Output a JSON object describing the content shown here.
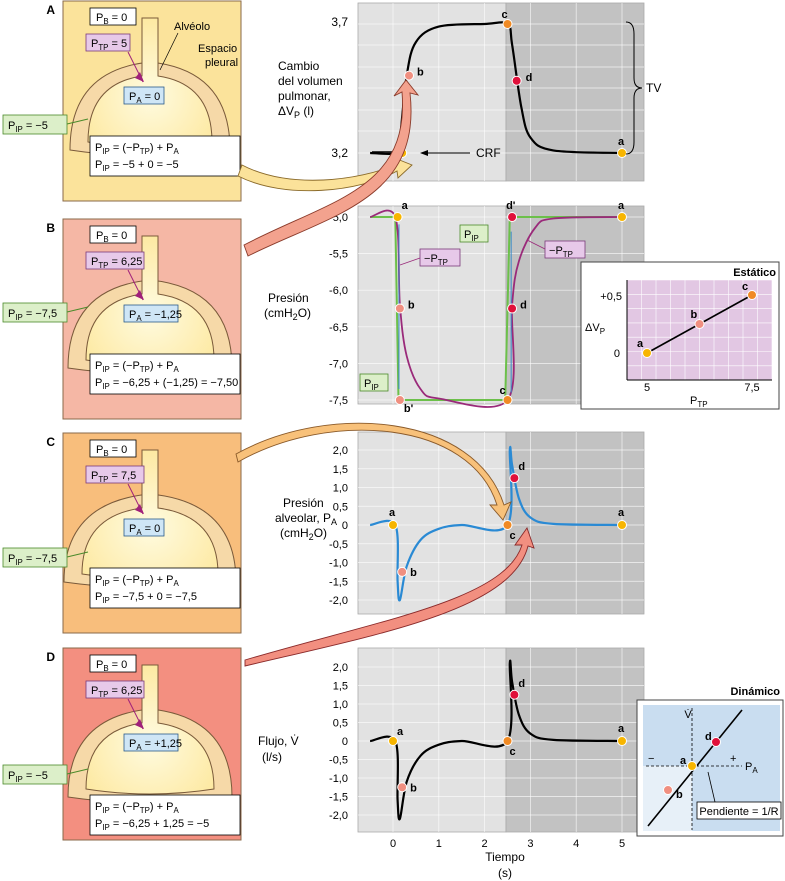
{
  "panels": [
    {
      "letter": "A",
      "pb": "PB = 0",
      "ptp": "PTP = 5",
      "pa": "PA = 0",
      "pip": "PIP = −5",
      "eq1": "PIP = (−PTP) + PA",
      "eq2": "PIP =   −5     + 0  = −5",
      "bg": "#fbe39b",
      "alveolus_label": "Alvéolo",
      "pleural_label": "Espacio pleural"
    },
    {
      "letter": "B",
      "pb": "PB = 0",
      "ptp": "PTP = 6,25",
      "pa": "PA = −1,25",
      "pip": "PIP = −7,5",
      "eq1": "PIP = (−PTP) + PA",
      "eq2": "PIP = −6,25 + (−1,25) = −7,50",
      "bg": "#f5b7a5"
    },
    {
      "letter": "C",
      "pb": "PB = 0",
      "ptp": "PTP = 7,5",
      "pa": "PA = 0",
      "pip": "PIP = −7,5",
      "eq1": "PIP = (−PTP) + PA",
      "eq2": "PIP =   −7,5  +  0   = −7,5",
      "bg": "#f8be7c"
    },
    {
      "letter": "D",
      "pb": "PB = 0",
      "ptp": "PTP = 6,25",
      "pa": "PA = +1,25",
      "pip": "PIP = −5",
      "eq1": "PIP = (−PTP) + PA",
      "eq2": "PIP =  −6,25 + 1,25 = −5",
      "bg": "#f38f80"
    }
  ],
  "chart_data": [
    {
      "type": "line",
      "ylabel": "Cambio del volumen pulmonar, ΔVP (l)",
      "ylim": [
        3.2,
        3.7
      ],
      "yticks": [
        "3,7",
        "3,2"
      ],
      "series": [
        {
          "x": [
            -0.5,
            0.1,
            0.15,
            0.3,
            0.5,
            1.0,
            2.0,
            2.5,
            2.6,
            2.8,
            3.0,
            3.5,
            5.0
          ],
          "values": [
            3.2,
            3.2,
            3.25,
            3.5,
            3.63,
            3.69,
            3.7,
            3.7,
            3.62,
            3.38,
            3.26,
            3.21,
            3.2
          ]
        }
      ],
      "points": [
        {
          "label": "a",
          "x": 0.2,
          "y": 3.2,
          "color": "#f7b500"
        },
        {
          "label": "b",
          "x": 0.35,
          "y": 3.5,
          "color": "#f08f80"
        },
        {
          "label": "c",
          "x": 2.5,
          "y": 3.7,
          "color": "#f08a24"
        },
        {
          "label": "d",
          "x": 2.7,
          "y": 3.48,
          "color": "#e0103a"
        },
        {
          "label": "a",
          "x": 5.0,
          "y": 3.2,
          "color": "#f7b500"
        }
      ],
      "annotations": {
        "crf": "CRF",
        "tv": "TV"
      }
    },
    {
      "type": "line",
      "ylabel": "Presión (cmH2O)",
      "ylim": [
        -7.5,
        -5.0
      ],
      "yticks": [
        "-5,0",
        "-5,5",
        "-6,0",
        "-6,5",
        "-7,0",
        "-7,5"
      ],
      "series": [
        {
          "name": "PIP",
          "x": [
            -0.5,
            0.05,
            0.12,
            2.45,
            2.55,
            5.0
          ],
          "values": [
            -5.0,
            -5.0,
            -7.5,
            -7.5,
            -5.0,
            -5.0
          ]
        },
        {
          "name": "−PTP",
          "x": [
            -0.5,
            0.05,
            0.15,
            0.3,
            0.6,
            1.0,
            2.5,
            2.6,
            2.75,
            3.1,
            3.5,
            5.0
          ],
          "values": [
            -5.0,
            -5.0,
            -6.2,
            -6.9,
            -7.35,
            -7.48,
            -7.5,
            -6.2,
            -5.6,
            -5.15,
            -5.02,
            -5.0
          ]
        }
      ],
      "points": [
        {
          "label": "a",
          "x": 0.1,
          "y": -5.0,
          "color": "#f7b500"
        },
        {
          "label": "b",
          "x": 0.15,
          "y": -6.25,
          "color": "#f08f80"
        },
        {
          "label": "b'",
          "x": 0.15,
          "y": -7.5,
          "color": "#f08f80"
        },
        {
          "label": "c",
          "x": 2.5,
          "y": -7.5,
          "color": "#f08a24"
        },
        {
          "label": "d",
          "x": 2.6,
          "y": -6.25,
          "color": "#e0103a"
        },
        {
          "label": "d'",
          "x": 2.6,
          "y": -5.0,
          "color": "#e0103a"
        },
        {
          "label": "a",
          "x": 5.0,
          "y": -5.0,
          "color": "#f7b500"
        }
      ],
      "labels": {
        "pip": "PIP",
        "ptp": "−PTP"
      }
    },
    {
      "type": "scatter",
      "title": "Estático",
      "xlabel": "PTP",
      "ylabel": "ΔVP",
      "xticks": [
        "5",
        "7,5"
      ],
      "yticks": [
        "+0,5",
        "0"
      ],
      "points": [
        {
          "label": "a",
          "x": 5.0,
          "y": 0.0,
          "color": "#f7b500"
        },
        {
          "label": "b",
          "x": 6.25,
          "y": 0.25,
          "color": "#f08f80"
        },
        {
          "label": "c",
          "x": 7.5,
          "y": 0.5,
          "color": "#f08a24"
        }
      ]
    },
    {
      "type": "line",
      "ylabel": "Presión alveolar, PA (cmH2O)",
      "ylim": [
        -2.0,
        2.0
      ],
      "yticks": [
        "2,0",
        "1,5",
        "1,0",
        "0,5",
        "0",
        "-0,5",
        "-1,0",
        "-1,5",
        "-2,0"
      ],
      "series": [
        {
          "x": [
            -0.5,
            0.05,
            0.1,
            0.15,
            0.3,
            0.6,
            1.0,
            1.5,
            2.5,
            2.55,
            2.6,
            2.75,
            3.0,
            3.5,
            5.0
          ],
          "values": [
            0,
            0,
            -1.5,
            -2.0,
            -1.1,
            -0.4,
            -0.1,
            0,
            0,
            2.0,
            1.6,
            0.7,
            0.2,
            0.03,
            0
          ]
        }
      ],
      "points": [
        {
          "label": "a",
          "x": 0.0,
          "y": 0,
          "color": "#f7b500"
        },
        {
          "label": "b",
          "x": 0.2,
          "y": -1.25,
          "color": "#f08f80"
        },
        {
          "label": "c",
          "x": 2.5,
          "y": 0,
          "color": "#f08a24"
        },
        {
          "label": "d",
          "x": 2.65,
          "y": 1.25,
          "color": "#e0103a"
        },
        {
          "label": "a",
          "x": 5.0,
          "y": 0,
          "color": "#f7b500"
        }
      ]
    },
    {
      "type": "line",
      "ylabel": "Flujo, V̇ (l/s)",
      "xlabel": "Tiempo (s)",
      "ylim": [
        -2.0,
        2.0
      ],
      "xticks": [
        "0",
        "1",
        "2",
        "3",
        "4",
        "5"
      ],
      "yticks": [
        "2,0",
        "1,5",
        "1,0",
        "0,5",
        "0",
        "-0,5",
        "-1,0",
        "-1,5",
        "-2,0"
      ],
      "series": [
        {
          "x": [
            -0.5,
            0.05,
            0.1,
            0.15,
            0.3,
            0.6,
            1.0,
            1.5,
            2.5,
            2.55,
            2.6,
            2.75,
            3.0,
            3.5,
            5.0
          ],
          "values": [
            0,
            0,
            -1.6,
            -2.1,
            -1.1,
            -0.4,
            -0.1,
            0,
            0,
            2.1,
            1.6,
            0.7,
            0.2,
            0.03,
            0
          ]
        }
      ],
      "points": [
        {
          "label": "a",
          "x": 0.0,
          "y": 0,
          "color": "#f7b500"
        },
        {
          "label": "b",
          "x": 0.2,
          "y": -1.25,
          "color": "#f08f80"
        },
        {
          "label": "c",
          "x": 2.5,
          "y": 0,
          "color": "#f08a24"
        },
        {
          "label": "d",
          "x": 2.65,
          "y": 1.25,
          "color": "#e0103a"
        },
        {
          "label": "a",
          "x": 5.0,
          "y": 0,
          "color": "#f7b500"
        }
      ]
    },
    {
      "type": "scatter",
      "title": "Dinámico",
      "xlabel": "PA",
      "ylabel": "V̇",
      "signs": {
        "neg": "−",
        "pos": "+"
      },
      "slope_label": "Pendiente = 1/R",
      "points": [
        {
          "label": "b",
          "x": -1.25,
          "y": -1.25,
          "color": "#f08f80"
        },
        {
          "label": "a",
          "x": 0,
          "y": 0,
          "color": "#f7b500"
        },
        {
          "label": "d",
          "x": 1.25,
          "y": 1.25,
          "color": "#e0103a"
        }
      ]
    }
  ]
}
